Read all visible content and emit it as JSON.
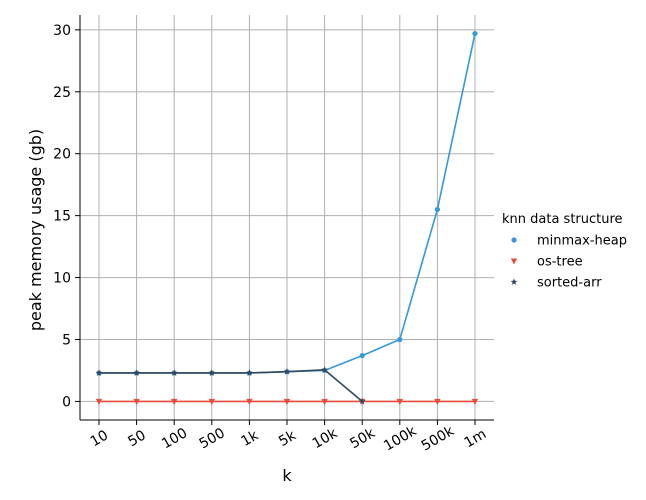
{
  "chart_data": {
    "type": "line",
    "xlabel": "k",
    "ylabel": "peak memory usage (gb)",
    "categories": [
      "10",
      "50",
      "100",
      "500",
      "1k",
      "5k",
      "10k",
      "50k",
      "100k",
      "500k",
      "1m"
    ],
    "ylim": [
      -1.5,
      31.2
    ],
    "yticks": [
      0,
      5,
      10,
      15,
      20,
      25,
      30
    ],
    "grid": true,
    "legend": {
      "title": "knn data structure",
      "placement": "right"
    },
    "series": [
      {
        "name": "minmax-heap",
        "color": "#3498db",
        "marker": "circle",
        "values": [
          2.3,
          2.3,
          2.3,
          2.3,
          2.3,
          2.4,
          2.5,
          3.7,
          5.0,
          15.5,
          29.7
        ]
      },
      {
        "name": "os-tree",
        "color": "#e74c3c",
        "marker": "triangle",
        "values": [
          0.0,
          0.0,
          0.0,
          0.0,
          0.0,
          0.0,
          0.0,
          0.0,
          0.0,
          0.0,
          0.0
        ]
      },
      {
        "name": "sorted-arr",
        "color": "#34495e",
        "marker": "star",
        "values": [
          2.3,
          2.3,
          2.3,
          2.3,
          2.3,
          2.4,
          2.55,
          0.0,
          null,
          null,
          null
        ]
      }
    ]
  }
}
